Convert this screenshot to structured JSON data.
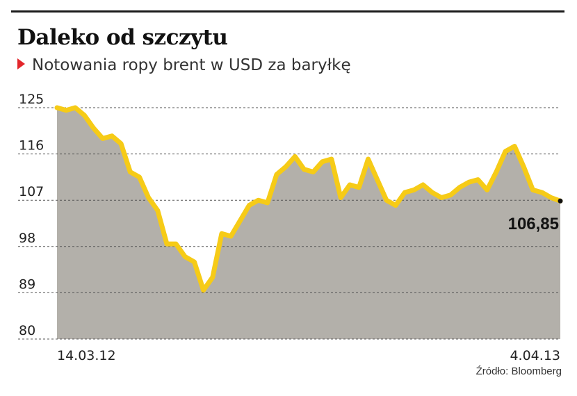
{
  "header": {
    "title": "Daleko od szczytu",
    "subtitle": "Notowania ropy brent w  USD za baryłkę"
  },
  "source": "Źródło: Bloomberg",
  "colors": {
    "line": "#f6cb17",
    "area": "#b3b0aa",
    "accent": "#e3262b",
    "grid": "#555555"
  },
  "chart_data": {
    "type": "area",
    "title": "Daleko od szczytu",
    "subtitle": "Notowania ropy brent w  USD za baryłkę",
    "xlabel": "",
    "ylabel": "",
    "ylim": [
      80,
      125
    ],
    "yticks": [
      125,
      116,
      107,
      98,
      89,
      80
    ],
    "xtick_labels": [
      "14.03.12",
      "4.04.13"
    ],
    "grid": "horizontal dashed",
    "last_value_label": "106,85",
    "series": [
      {
        "name": "",
        "x": [
          "14.03.12",
          "22.03.12",
          "29.03.12",
          "05.04.12",
          "12.04.12",
          "19.04.12",
          "26.04.12",
          "03.05.12",
          "10.05.12",
          "17.05.12",
          "24.05.12",
          "31.05.12",
          "07.06.12",
          "14.06.12",
          "21.06.12",
          "28.06.12",
          "05.07.12",
          "12.07.12",
          "19.07.12",
          "26.07.12",
          "02.08.12",
          "09.08.12",
          "16.08.12",
          "23.08.12",
          "30.08.12",
          "06.09.12",
          "13.09.12",
          "20.09.12",
          "27.09.12",
          "04.10.12",
          "11.10.12",
          "18.10.12",
          "25.10.12",
          "01.11.12",
          "08.11.12",
          "15.11.12",
          "22.11.12",
          "29.11.12",
          "06.12.12",
          "13.12.12",
          "20.12.12",
          "27.12.12",
          "03.01.13",
          "10.01.13",
          "17.01.13",
          "24.01.13",
          "31.01.13",
          "07.02.13",
          "14.02.13",
          "21.02.13",
          "28.02.13",
          "07.03.13",
          "14.03.13",
          "21.03.13",
          "28.03.13",
          "04.04.13"
        ],
        "values": [
          125.0,
          124.5,
          125.0,
          123.5,
          121.0,
          119.0,
          119.5,
          118.0,
          112.5,
          111.5,
          107.5,
          105.0,
          98.5,
          98.5,
          96.0,
          95.0,
          89.5,
          92.0,
          100.5,
          100.0,
          103.0,
          106.0,
          107.0,
          106.5,
          112.0,
          113.5,
          115.5,
          113.0,
          112.5,
          114.5,
          115.0,
          107.5,
          110.0,
          109.5,
          115.0,
          111.0,
          107.0,
          106.0,
          108.5,
          109.0,
          110.0,
          108.5,
          107.5,
          108.0,
          109.5,
          110.5,
          111.0,
          109.0,
          112.5,
          116.5,
          117.5,
          113.5,
          109.0,
          108.5,
          107.5,
          106.85
        ]
      }
    ]
  }
}
